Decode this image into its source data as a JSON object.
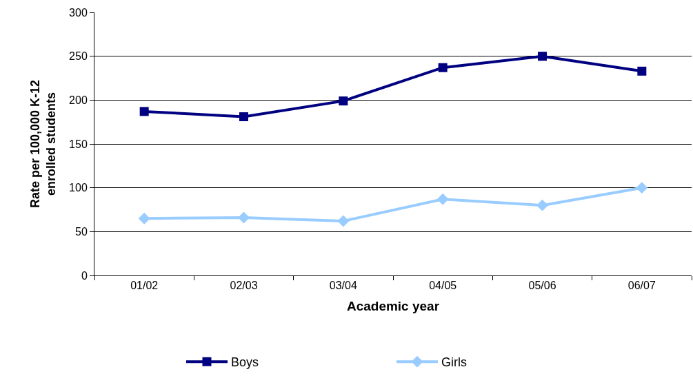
{
  "chart_data": {
    "type": "line",
    "xlabel": "Academic year",
    "ylabel": "Rate per 100,000 K-12 enrolled students",
    "categories": [
      "01/02",
      "02/03",
      "03/04",
      "04/05",
      "05/06",
      "06/07"
    ],
    "series": [
      {
        "name": "Boys",
        "color": "#000080",
        "marker": "square",
        "values": [
          187,
          181,
          199,
          237,
          250,
          233
        ]
      },
      {
        "name": "Girls",
        "color": "#99ccff",
        "marker": "diamond",
        "values": [
          65,
          66,
          62,
          87,
          80,
          100
        ]
      }
    ],
    "ylim": [
      0,
      300
    ],
    "yticks": [
      0,
      50,
      100,
      150,
      200,
      250,
      300
    ],
    "grid": "y",
    "legend": "bottom",
    "line_style": "solid"
  }
}
